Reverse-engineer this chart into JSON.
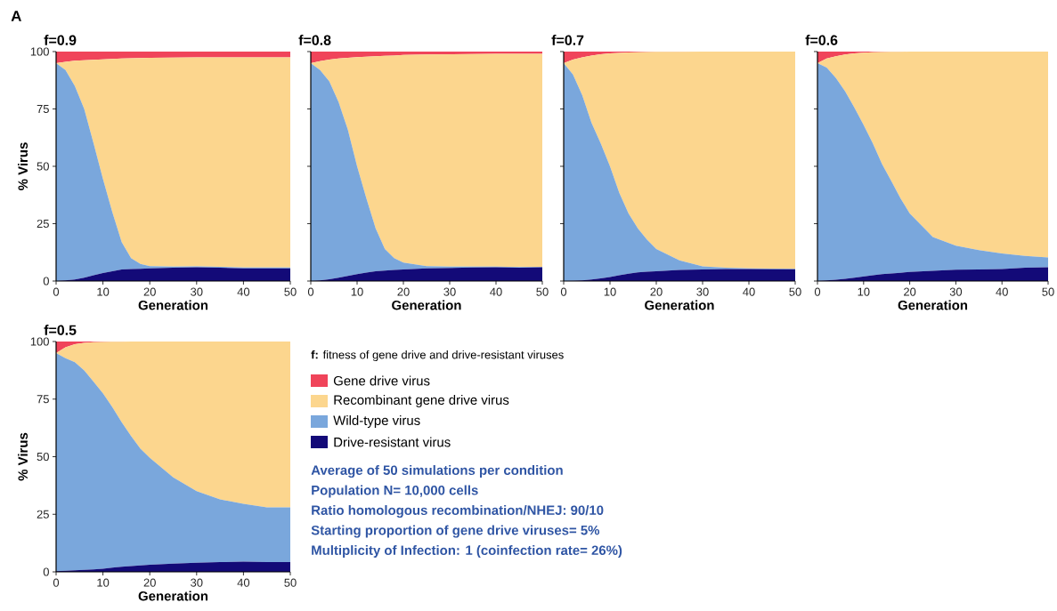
{
  "chart_data": [
    {
      "type": "area",
      "stacked": true,
      "title": "f=0.9",
      "xlabel": "Generation",
      "ylabel": "% Virus",
      "annotations": [
        "A"
      ],
      "x": [
        0,
        2,
        4,
        6,
        8,
        10,
        12,
        14,
        16,
        18,
        20,
        25,
        30,
        35,
        40,
        45,
        50
      ],
      "xlim": [
        0,
        50
      ],
      "xticks": [
        0,
        10,
        20,
        30,
        40,
        50
      ],
      "ylim": [
        0,
        100
      ],
      "yticks": [
        0,
        25,
        50,
        75,
        100
      ],
      "series": [
        {
          "color": "#130a78",
          "values": [
            0,
            0.3,
            0.7,
            1.5,
            2.5,
            3.5,
            4.3,
            5,
            5.2,
            5.3,
            5.5,
            5.8,
            6,
            5.8,
            5.5,
            5.5,
            5.5
          ]
        },
        {
          "color": "#7aa7dc",
          "values": [
            95,
            91.7,
            84.3,
            73.5,
            57.5,
            41,
            25.7,
            12,
            4.8,
            2.2,
            1,
            0.5,
            0.4,
            0.4,
            0.4,
            0.4,
            0.4
          ]
        },
        {
          "color": "#fcd68e",
          "values": [
            0,
            3.5,
            11,
            21.2,
            36.4,
            52.1,
            66.8,
            80,
            87.1,
            89.7,
            90.8,
            91.1,
            91.1,
            91.3,
            91.6,
            91.6,
            91.6
          ]
        },
        {
          "color": "#f0445a",
          "values": [
            5,
            4.5,
            4,
            3.8,
            3.6,
            3.4,
            3.2,
            3,
            2.9,
            2.8,
            2.7,
            2.6,
            2.5,
            2.5,
            2.5,
            2.5,
            2.5
          ]
        }
      ]
    },
    {
      "type": "area",
      "stacked": true,
      "title": "f=0.8",
      "xlabel": "Generation",
      "tick_labels": "x",
      "x": [
        0,
        2,
        4,
        6,
        8,
        10,
        12,
        14,
        16,
        18,
        20,
        25,
        30,
        35,
        40,
        45,
        50
      ],
      "xlim": [
        0,
        50
      ],
      "xticks": [
        0,
        10,
        20,
        30,
        40,
        50
      ],
      "ylim": [
        0,
        100
      ],
      "yticks": [
        0,
        25,
        50,
        75,
        100
      ],
      "series": [
        {
          "color": "#130a78",
          "values": [
            0,
            0.3,
            0.8,
            1.5,
            2.2,
            3,
            3.7,
            4.3,
            4.6,
            4.8,
            5,
            5.5,
            5.7,
            5.9,
            6,
            5.8,
            6
          ]
        },
        {
          "color": "#7aa7dc",
          "values": [
            95,
            91.7,
            86.2,
            76.5,
            63.8,
            47,
            32.3,
            18.7,
            9.4,
            5.2,
            3,
            1,
            0.6,
            0.4,
            0.3,
            0.3,
            0.2
          ]
        },
        {
          "color": "#fcd68e",
          "values": [
            0,
            3.8,
            9.5,
            19,
            31.3,
            47.6,
            61.8,
            75,
            84.2,
            88.3,
            90.5,
            92.2,
            92.5,
            92.6,
            92.7,
            92.9,
            92.8
          ]
        },
        {
          "color": "#f0445a",
          "values": [
            5,
            4.2,
            3.5,
            3,
            2.7,
            2.4,
            2.2,
            2,
            1.8,
            1.7,
            1.5,
            1.3,
            1.2,
            1.1,
            1,
            1,
            1
          ]
        }
      ]
    },
    {
      "type": "area",
      "stacked": true,
      "title": "f=0.7",
      "xlabel": "Generation",
      "tick_labels": "x",
      "x": [
        0,
        2,
        4,
        6,
        8,
        10,
        12,
        14,
        16,
        18,
        20,
        25,
        30,
        35,
        40,
        45,
        50
      ],
      "xlim": [
        0,
        50
      ],
      "xticks": [
        0,
        10,
        20,
        30,
        40,
        50
      ],
      "ylim": [
        0,
        100
      ],
      "yticks": [
        0,
        25,
        50,
        75,
        100
      ],
      "series": [
        {
          "color": "#130a78",
          "values": [
            0,
            0.1,
            0.3,
            0.7,
            1.2,
            1.7,
            2.5,
            3.2,
            3.8,
            4.1,
            4.3,
            4.8,
            5,
            5.2,
            5.2,
            5.1,
            5.1
          ]
        },
        {
          "color": "#7aa7dc",
          "values": [
            95,
            89.9,
            80.7,
            68.3,
            58.8,
            48.3,
            36,
            26.3,
            19.2,
            13.9,
            9.7,
            4.2,
            1.4,
            0.6,
            0.3,
            0.3,
            0.2
          ]
        },
        {
          "color": "#fcd68e",
          "values": [
            0,
            6.5,
            16.5,
            29.3,
            38.8,
            49.2,
            60.9,
            70.1,
            76.7,
            81.8,
            85.9,
            90.9,
            93.6,
            94.2,
            94.5,
            94.6,
            94.7
          ]
        },
        {
          "color": "#f0445a",
          "values": [
            5,
            3.5,
            2.5,
            1.7,
            1.2,
            0.8,
            0.6,
            0.4,
            0.3,
            0.2,
            0.1,
            0.1,
            0,
            0,
            0,
            0,
            0
          ]
        }
      ]
    },
    {
      "type": "area",
      "stacked": true,
      "title": "f=0.6",
      "xlabel": "Generation",
      "tick_labels": "x",
      "x": [
        0,
        2,
        4,
        6,
        8,
        10,
        12,
        14,
        16,
        18,
        20,
        25,
        30,
        35,
        40,
        45,
        50
      ],
      "xlim": [
        0,
        50
      ],
      "xticks": [
        0,
        10,
        20,
        30,
        40,
        50
      ],
      "ylim": [
        0,
        100
      ],
      "yticks": [
        0,
        25,
        50,
        75,
        100
      ],
      "series": [
        {
          "color": "#130a78",
          "values": [
            0,
            0.3,
            0.6,
            1,
            1.5,
            2,
            2.5,
            3,
            3.3,
            3.6,
            4,
            4.5,
            4.9,
            5,
            5.2,
            5.8,
            6
          ]
        },
        {
          "color": "#7aa7dc",
          "values": [
            95,
            92.7,
            87.9,
            81.7,
            74.1,
            66,
            57.5,
            48,
            40.3,
            32.4,
            25.5,
            14.7,
            10.5,
            8.5,
            6.8,
            5.1,
            4.3
          ]
        },
        {
          "color": "#fcd68e",
          "values": [
            0,
            4,
            9.5,
            16,
            23.6,
            31.5,
            39.7,
            48.8,
            56.3,
            63.9,
            70.5,
            80.8,
            84.6,
            86.5,
            88,
            89.1,
            89.7
          ]
        },
        {
          "color": "#f0445a",
          "values": [
            5,
            3,
            2,
            1.3,
            0.8,
            0.5,
            0.3,
            0.2,
            0.1,
            0.1,
            0,
            0,
            0,
            0,
            0,
            0,
            0
          ]
        }
      ]
    },
    {
      "type": "area",
      "stacked": true,
      "title": "f=0.5",
      "xlabel": "Generation",
      "ylabel": "% Virus",
      "legend": "right",
      "legend_title": "**f:** fitness of gene drive and drive-resistant viruses",
      "annotations": [
        "Average of 50 simulations per condition",
        "Population N= 10,000 cells",
        "Ratio homologous recombination/NHEJ: 90/10",
        "Starting proportion of gene drive viruses= 5%",
        "Multiplicity of Infection: 1 (coinfection rate= 26%)"
      ],
      "x": [
        0,
        2,
        4,
        6,
        8,
        10,
        12,
        14,
        16,
        18,
        20,
        25,
        30,
        35,
        40,
        45,
        50
      ],
      "xlim": [
        0,
        50
      ],
      "xticks": [
        0,
        10,
        20,
        30,
        40,
        50
      ],
      "ylim": [
        0,
        100
      ],
      "yticks": [
        0,
        25,
        50,
        75,
        100
      ],
      "series": [
        {
          "name": "Drive-resistant virus",
          "color": "#130a78",
          "values": [
            0.3,
            0.5,
            0.7,
            0.9,
            1.1,
            1.4,
            1.8,
            2.2,
            2.5,
            2.8,
            3.1,
            3.6,
            4,
            4.2,
            4.4,
            4.2,
            4.2
          ]
        },
        {
          "name": "Wild-type virus",
          "color": "#7aa7dc",
          "values": [
            94.7,
            92.3,
            90.3,
            86.6,
            81.4,
            76.1,
            69.7,
            62.8,
            56.5,
            50.7,
            46.4,
            37.4,
            31,
            27.3,
            25.1,
            23.8,
            23.8
          ]
        },
        {
          "name": "Recombinant gene drive virus",
          "color": "#fcd68e",
          "values": [
            0,
            4.7,
            7.8,
            11.9,
            17.2,
            22.3,
            28.4,
            34.9,
            41,
            46.5,
            50.5,
            59,
            65,
            68.5,
            70.5,
            72,
            72
          ]
        },
        {
          "name": "Gene drive virus",
          "color": "#f0445a",
          "values": [
            5,
            2.5,
            1.2,
            0.6,
            0.3,
            0.2,
            0.1,
            0.1,
            0,
            0,
            0,
            0,
            0,
            0,
            0,
            0,
            0
          ]
        }
      ]
    }
  ]
}
